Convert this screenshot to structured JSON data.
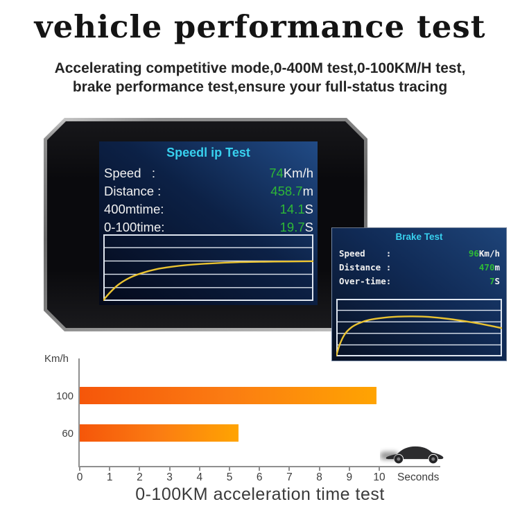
{
  "title": "vehicle performance test",
  "subtitle": {
    "line1": "Accelerating competitive mode,0-400M test,0-100KM/H test,",
    "line2": "brake performance test,ensure your full-status tracing"
  },
  "device_screen": {
    "title": "Speedl ip Test",
    "rows": [
      {
        "label": "Speed   :",
        "value": "74",
        "unit": "Km/h"
      },
      {
        "label": "Distance :",
        "value": "458.7",
        "unit": "m"
      },
      {
        "label": "400mtime:",
        "value": "14.1",
        "unit": "S"
      },
      {
        "label": "0-100time:",
        "value": "19.7",
        "unit": "S"
      }
    ]
  },
  "brake_panel": {
    "title": "Brake Test",
    "rows": [
      {
        "label": "Speed    :",
        "value": "96",
        "unit": "Km/h"
      },
      {
        "label": "Distance :",
        "value": "470",
        "unit": "m"
      },
      {
        "label": "Over-time:",
        "value": "7",
        "unit": "S"
      }
    ]
  },
  "footer_caption": "0-100KM acceleration time test",
  "colors": {
    "value_green": "#2eb837",
    "title_cyan": "#38d0ee",
    "curve_yellow": "#eac331",
    "grid_white": "#dfe6f0",
    "bar_gradient_start": "#f5560a",
    "bar_gradient_end": "#ffa402",
    "axis_gray": "#8f8f8f"
  },
  "chart_data": [
    {
      "type": "line",
      "title": "Speedl ip Test",
      "description": "Speed vs time curve: rises steeply then levels off near 70% of scale",
      "points": [
        [
          0,
          0.99
        ],
        [
          0.03,
          0.88
        ],
        [
          0.07,
          0.76
        ],
        [
          0.12,
          0.66
        ],
        [
          0.18,
          0.585
        ],
        [
          0.25,
          0.525
        ],
        [
          0.33,
          0.485
        ],
        [
          0.42,
          0.455
        ],
        [
          0.52,
          0.435
        ],
        [
          0.63,
          0.42
        ],
        [
          0.75,
          0.412
        ],
        [
          0.88,
          0.408
        ],
        [
          1,
          0.404
        ]
      ],
      "grid_lines": 4,
      "line_color": "#eac331",
      "grid_color": "#dfe6f0"
    },
    {
      "type": "line",
      "title": "Brake Test",
      "description": "Speed vs time curve: rises to a peak near 40% of width then gently falls",
      "points": [
        [
          0,
          0.99
        ],
        [
          0.02,
          0.8
        ],
        [
          0.05,
          0.62
        ],
        [
          0.09,
          0.5
        ],
        [
          0.14,
          0.42
        ],
        [
          0.2,
          0.365
        ],
        [
          0.28,
          0.33
        ],
        [
          0.37,
          0.31
        ],
        [
          0.46,
          0.305
        ],
        [
          0.56,
          0.315
        ],
        [
          0.68,
          0.35
        ],
        [
          0.8,
          0.4
        ],
        [
          0.9,
          0.45
        ],
        [
          1,
          0.51
        ]
      ],
      "grid_lines": 4,
      "line_color": "#eac331",
      "grid_color": "#dfe6f0"
    },
    {
      "type": "bar",
      "orientation": "horizontal",
      "title": "0-100KM acceleration time test",
      "categories": [
        "100",
        "60"
      ],
      "values": [
        9.9,
        5.3
      ],
      "unit": "seconds",
      "xlabel": "Seconds",
      "ylabel": "Km/h",
      "xlim": [
        0,
        10
      ],
      "x_ticks": [
        "0",
        "1",
        "2",
        "3",
        "4",
        "5",
        "6",
        "7",
        "8",
        "9",
        "10"
      ],
      "grid": false,
      "legend": false
    }
  ]
}
